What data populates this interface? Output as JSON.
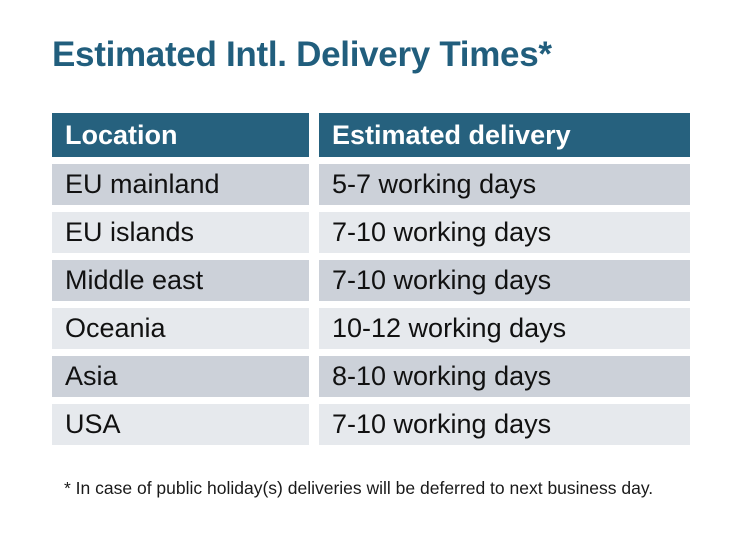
{
  "title": "Estimated Intl. Delivery Times*",
  "table": {
    "headers": [
      "Location",
      "Estimated delivery"
    ],
    "rows": [
      {
        "location": "EU mainland",
        "delivery": "5-7 working days"
      },
      {
        "location": "EU islands",
        "delivery": "7-10 working days"
      },
      {
        "location": "Middle east",
        "delivery": "7-10 working days"
      },
      {
        "location": "Oceania",
        "delivery": "10-12 working days"
      },
      {
        "location": "Asia",
        "delivery": "8-10 working days"
      },
      {
        "location": "USA",
        "delivery": "7-10 working days"
      }
    ]
  },
  "footnote": "* In case of public holiday(s) deliveries will be deferred to next business day.",
  "colors": {
    "title": "#215e7d",
    "header_bg": "#26617e",
    "header_text": "#ffffff",
    "row_dark": "#ccd1d9",
    "row_light": "#e6e9ed",
    "body_text": "#111111"
  }
}
